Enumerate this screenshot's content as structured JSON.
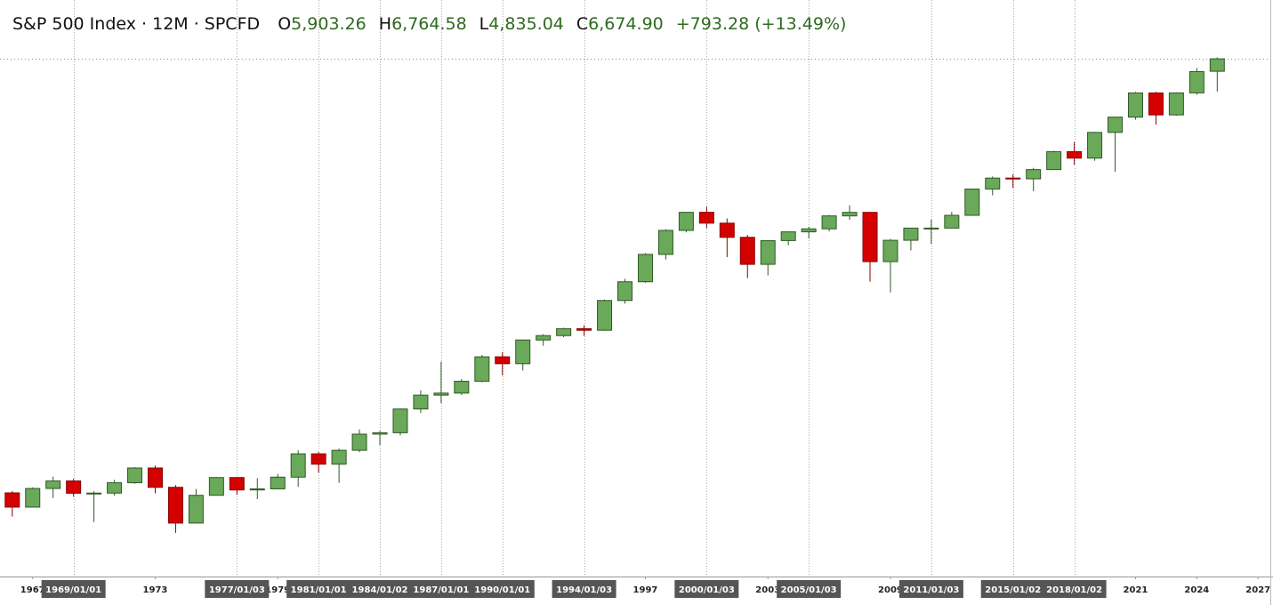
{
  "chart_data": {
    "type": "candlestick",
    "title": "S&P 500 Index · 12M · SPCFD",
    "ohlc_labels": [
      {
        "key": "O",
        "label": "5,903.26"
      },
      {
        "key": "H",
        "label": "6,764.58"
      },
      {
        "key": "L",
        "label": "4,835.04"
      },
      {
        "key": "C",
        "label": "6,674.90"
      }
    ],
    "change_label": "+793.28",
    "change_pct_label": "(+13.49%)",
    "x": [
      1966,
      1967,
      1968,
      1969,
      1970,
      1971,
      1972,
      1973,
      1974,
      1975,
      1976,
      1977,
      1978,
      1979,
      1980,
      1981,
      1982,
      1983,
      1984,
      1985,
      1986,
      1987,
      1988,
      1989,
      1990,
      1991,
      1992,
      1993,
      1994,
      1995,
      1996,
      1997,
      1998,
      1999,
      2000,
      2001,
      2002,
      2003,
      2004,
      2005,
      2006,
      2007,
      2008,
      2009,
      2010,
      2011,
      2012,
      2013,
      2014,
      2015,
      2016,
      2017,
      2018,
      2019,
      2020,
      2021,
      2022,
      2023,
      2024,
      2025
    ],
    "open": [
      92.4,
      80.3,
      96.5,
      103.9,
      92.1,
      92.2,
      102.1,
      118.1,
      97.6,
      68.6,
      90.2,
      107.5,
      95.1,
      96.1,
      107.9,
      135.8,
      122.6,
      140.6,
      164.9,
      167.2,
      211.3,
      242.2,
      247.1,
      277.7,
      353.4,
      330.2,
      417.1,
      435.7,
      466.5,
      459.3,
      615.9,
      740.7,
      970.4,
      1229.2,
      1469.3,
      1320.3,
      1148.1,
      879.8,
      1111.9,
      1211.9,
      1248.3,
      1418.3,
      1468.4,
      903.3,
      1115.1,
      1257.6,
      1257.6,
      1426.2,
      1848.4,
      2058.9,
      2043.9,
      2238.8,
      2673.6,
      2506.9,
      3230.8,
      3756.1,
      4766.2,
      3839.5,
      4769.8,
      5903.26
    ],
    "high": [
      94.1,
      97.6,
      108.4,
      106.2,
      94.0,
      105.0,
      119.1,
      121.0,
      99.8,
      96.0,
      108.0,
      107.9,
      106.9,
      111.3,
      140.5,
      138.1,
      143.0,
      172.7,
      170.4,
      212.0,
      254.0,
      336.8,
      283.9,
      360.0,
      369.8,
      419.0,
      442.0,
      471.0,
      482.0,
      622.0,
      762.0,
      983.0,
      1244.0,
      1473.0,
      1552.9,
      1383.0,
      1176.0,
      1112.0,
      1217.0,
      1275.0,
      1431.0,
      1576.0,
      1471.0,
      1130.0,
      1262.0,
      1370.0,
      1475.0,
      1849.0,
      2093.0,
      2134.7,
      2277.5,
      2694.0,
      2940.9,
      3247.9,
      3756.1,
      4818.6,
      4818.6,
      4793.0,
      6099.97,
      6764.58
    ],
    "low": [
      73.2,
      80.0,
      87.7,
      89.0,
      69.3,
      90.0,
      101.0,
      92.0,
      62.3,
      70.0,
      90.0,
      90.7,
      86.9,
      96.0,
      98.0,
      112.8,
      102.0,
      138.0,
      147.8,
      163.0,
      203.0,
      223.9,
      242.6,
      275.0,
      294.5,
      309.0,
      394.0,
      429.0,
      435.0,
      457.0,
      597.0,
      733.0,
      923.0,
      1205.0,
      1254.0,
      945.0,
      768.6,
      788.9,
      1060.0,
      1136.0,
      1219.0,
      1364.0,
      741.0,
      666.8,
      1010.0,
      1074.8,
      1258.0,
      1426.0,
      1737.0,
      1867.0,
      1810.0,
      2245.0,
      2346.6,
      2443.9,
      2191.9,
      3662.7,
      3491.6,
      3808.9,
      4682.0,
      4835.04
    ],
    "close": [
      80.3,
      96.5,
      103.9,
      92.1,
      92.2,
      102.1,
      118.1,
      97.6,
      68.6,
      90.2,
      107.5,
      95.1,
      96.1,
      107.9,
      135.8,
      122.6,
      140.6,
      164.9,
      167.2,
      211.3,
      242.2,
      247.1,
      277.7,
      353.4,
      330.2,
      417.1,
      435.7,
      466.5,
      459.3,
      615.9,
      740.7,
      970.4,
      1229.2,
      1469.3,
      1320.3,
      1148.1,
      879.8,
      1111.9,
      1211.9,
      1248.3,
      1418.3,
      1468.4,
      903.3,
      1115.1,
      1257.6,
      1257.6,
      1426.2,
      1848.4,
      2058.9,
      2043.9,
      2238.8,
      2673.6,
      2506.9,
      3230.8,
      3756.1,
      4766.2,
      3839.5,
      4769.8,
      5881.6,
      6674.9
    ],
    "up_color": "#6aa85a",
    "down_color": "#d40000",
    "log_scale": true,
    "grid": "x",
    "xlim": [
      1965.4,
      2027.6
    ],
    "ylim": [
      40.5,
      11920
    ],
    "xticks": [
      1967,
      1973,
      1979,
      1997,
      2003,
      2009,
      2021,
      2024,
      2027
    ],
    "xtick_highlights": [
      {
        "value": 1969,
        "label": "1969/01/01"
      },
      {
        "value": 1977,
        "label": "1977/01/03"
      },
      {
        "value": 1981,
        "label": "1981/01/01"
      },
      {
        "value": 1984,
        "label": "1984/01/02"
      },
      {
        "value": 1987,
        "label": "1987/01/01"
      },
      {
        "value": 1990,
        "label": "1990/01/01"
      },
      {
        "value": 1994,
        "label": "1994/01/03"
      },
      {
        "value": 2000,
        "label": "2000/01/03"
      },
      {
        "value": 2005,
        "label": "2005/01/03"
      },
      {
        "value": 2011,
        "label": "2011/01/03"
      },
      {
        "value": 2015,
        "label": "2015/01/02"
      },
      {
        "value": 2018,
        "label": "2018/01/02"
      }
    ]
  }
}
